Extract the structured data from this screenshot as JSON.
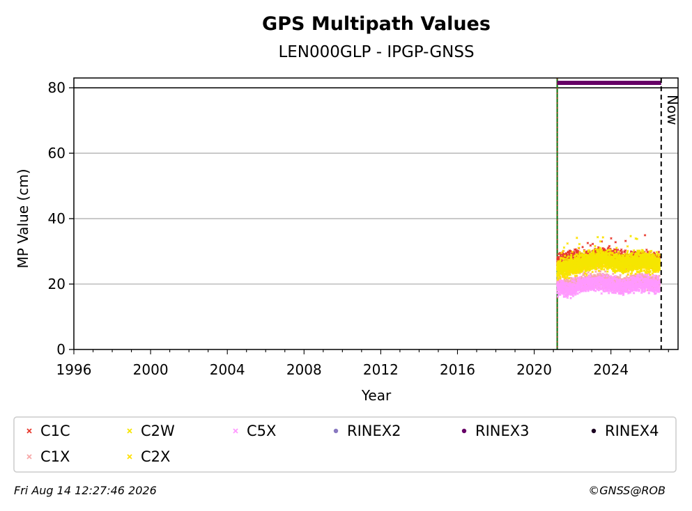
{
  "chart_data": {
    "type": "scatter",
    "title": "GPS Multipath Values",
    "subtitle": "LEN000GLP - IPGP-GNSS",
    "xlabel": "Year",
    "ylabel": "MP Value (cm)",
    "xlim": [
      1996,
      2027.5
    ],
    "ylim": [
      0,
      83
    ],
    "x_ticks": [
      1996,
      2000,
      2004,
      2008,
      2012,
      2016,
      2020,
      2024
    ],
    "y_ticks": [
      0,
      20,
      40,
      60,
      80
    ],
    "grid": "horizontal",
    "now_label": "Now",
    "now_x": 2026.62,
    "station_start": 2021.2,
    "series": [
      {
        "name": "C1C",
        "color": "#e8382c",
        "marker": "x",
        "x": [
          2021.3,
          2021.8,
          2022.3,
          2022.8,
          2023.3,
          2023.8,
          2024.3,
          2024.8,
          2025.3,
          2025.8,
          2026.3
        ],
        "y": [
          26.5,
          27.5,
          28.0,
          27.5,
          28.5,
          28.5,
          28.0,
          27.0,
          28.0,
          27.5,
          27.0
        ]
      },
      {
        "name": "C1X",
        "color": "#f7a8a8",
        "marker": "x",
        "x": [
          2021.3,
          2021.8,
          2022.3,
          2022.8,
          2023.3,
          2023.8,
          2024.3,
          2024.8,
          2025.3,
          2025.8,
          2026.3
        ],
        "y": [
          20.0,
          19.5,
          20.5,
          21.0,
          21.5,
          21.0,
          20.5,
          20.0,
          21.0,
          21.0,
          20.5
        ]
      },
      {
        "name": "C2W",
        "color": "#f5e600",
        "marker": "x",
        "x": [
          2021.3,
          2021.8,
          2022.3,
          2022.8,
          2023.3,
          2023.8,
          2024.3,
          2024.8,
          2025.3,
          2025.8,
          2026.3
        ],
        "y": [
          25.0,
          25.5,
          26.5,
          27.0,
          28.0,
          27.5,
          27.0,
          26.5,
          27.0,
          27.5,
          26.5
        ]
      },
      {
        "name": "C2X",
        "color": "#ffe000",
        "marker": "x",
        "x": [
          2021.3,
          2021.8,
          2022.3,
          2022.8,
          2023.3,
          2023.8,
          2024.3,
          2024.8,
          2025.3,
          2025.8,
          2026.3
        ],
        "y": [
          24.5,
          25.0,
          26.0,
          26.5,
          27.5,
          27.0,
          26.5,
          26.0,
          26.5,
          27.0,
          26.0
        ]
      },
      {
        "name": "C5X",
        "color": "#ff99ff",
        "marker": "x",
        "x": [
          2021.3,
          2021.8,
          2022.3,
          2022.8,
          2023.3,
          2023.8,
          2024.3,
          2024.8,
          2025.3,
          2025.8,
          2026.3
        ],
        "y": [
          19.0,
          18.5,
          19.5,
          20.0,
          20.5,
          20.0,
          19.5,
          19.0,
          20.0,
          20.0,
          19.5
        ]
      },
      {
        "name": "RINEX2",
        "color": "#8878c0",
        "marker": "dot",
        "x": [],
        "y": []
      },
      {
        "name": "RINEX3",
        "color": "#660066",
        "marker": "dot",
        "x": [
          2021.2,
          2026.62
        ],
        "y": [
          81.5,
          81.5
        ]
      },
      {
        "name": "RINEX4",
        "color": "#1a0020",
        "marker": "dot",
        "x": [],
        "y": []
      }
    ],
    "legend_placement": "bottom"
  },
  "footer": {
    "timestamp": "Fri Aug 14 12:27:46 2026",
    "credit": "©GNSS@ROB"
  }
}
